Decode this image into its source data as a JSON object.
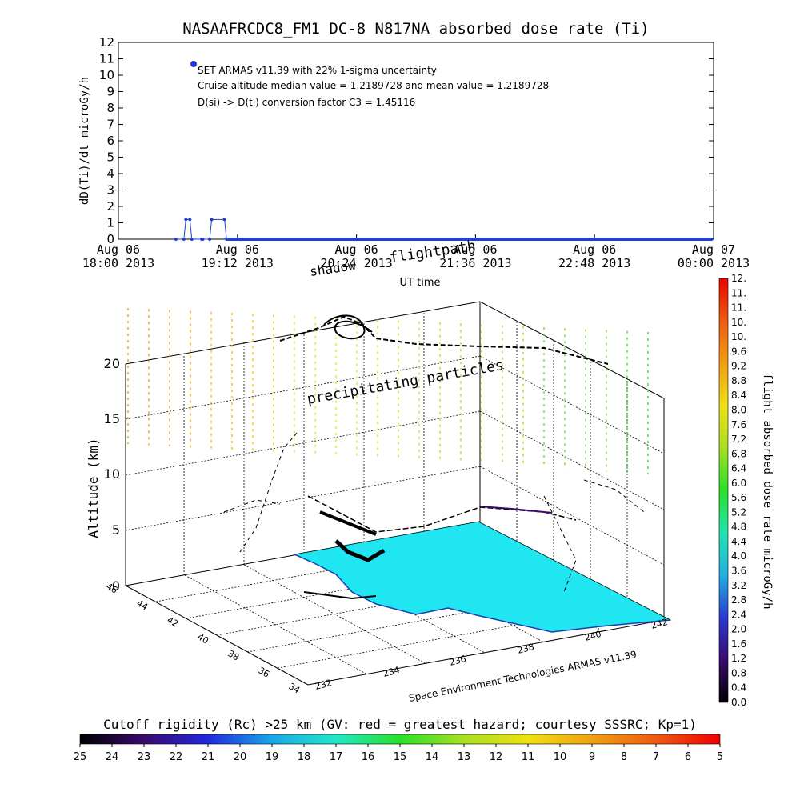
{
  "title": "NASAAFRCDC8_FM1 DC-8   N817NA absorbed dose rate (Ti)",
  "annotations": [
    "SET ARMAS v11.39 with 22% 1-sigma uncertainty",
    "Cruise altitude median value = 1.2189728 and mean value = 1.2189728",
    "D(si) -> D(ti) conversion factor C3 = 1.45116"
  ],
  "colors": {
    "series": "#1f3fd8",
    "land": "#1fe6f0",
    "dose_scale": [
      "#000000",
      "#3a0a6e",
      "#2a3ad6",
      "#1fb0e0",
      "#1fe6b0",
      "#28e028",
      "#a8e020",
      "#f0e010",
      "#f0a010",
      "#f05a10",
      "#f00000"
    ],
    "rigidity_scale": [
      "#000000",
      "#3a0a6e",
      "#2028e0",
      "#18a8e8",
      "#20e8c8",
      "#28e028",
      "#a8e020",
      "#f0e010",
      "#f0a010",
      "#f05a10",
      "#f00000"
    ]
  },
  "scene": {
    "label_flightpath": "flightpath",
    "label_shadow": "shadow",
    "label_precip": "precipitating particles",
    "altitude_label": "Altitude (km)",
    "credit": "Space Environment Technologies ARMAS v11.39",
    "alt_ticks": [
      "0",
      "5",
      "10",
      "15",
      "20"
    ],
    "lat_ticks": [
      "34",
      "36",
      "38",
      "40",
      "42",
      "44",
      "46"
    ],
    "lon_ticks": [
      "232",
      "234",
      "236",
      "238",
      "240",
      "242"
    ]
  },
  "dose_colorbar": {
    "label": "flight absorbed dose rate microGy/h",
    "ticks": [
      "0.0",
      "0.4",
      "0.8",
      "1.2",
      "1.6",
      "2.0",
      "2.4",
      "2.8",
      "3.2",
      "3.6",
      "4.0",
      "4.4",
      "4.8",
      "5.2",
      "5.6",
      "6.0",
      "6.4",
      "6.8",
      "7.2",
      "7.6",
      "8.0",
      "8.4",
      "8.8",
      "9.2",
      "9.6",
      "10.",
      "10.",
      "11.",
      "11.",
      "12."
    ]
  },
  "rigidity_colorbar": {
    "label": "Cutoff rigidity (Rc) >25 km (GV: red = greatest hazard; courtesy SSSRC; Kp=1)",
    "ticks": [
      "25",
      "24",
      "23",
      "22",
      "21",
      "20",
      "19",
      "18",
      "17",
      "16",
      "15",
      "14",
      "13",
      "12",
      "11",
      "10",
      "9",
      "8",
      "7",
      "6",
      "5"
    ]
  },
  "chart_data": {
    "type": "line",
    "title": "NASAAFRCDC8_FM1 DC-8   N817NA absorbed dose rate (Ti)",
    "xlabel": "UT time",
    "ylabel": "dD(Ti)/dt microGy/h",
    "ylim": [
      0,
      12
    ],
    "xlim_hours": [
      0,
      6
    ],
    "x_ticks": [
      "Aug 06\n18:00 2013",
      "Aug 06\n19:12 2013",
      "Aug 06\n20:24 2013",
      "Aug 06\n21:36 2013",
      "Aug 06\n22:48 2013",
      "Aug 07\n00:00 2013"
    ],
    "y_ticks": [
      "0",
      "1",
      "2",
      "3",
      "4",
      "5",
      "6",
      "7",
      "8",
      "9",
      "10",
      "11",
      "12"
    ],
    "series": [
      {
        "x": [
          0.58,
          0.66,
          0.68,
          0.72,
          0.74,
          0.84,
          0.85,
          0.92,
          0.94,
          1.07,
          1.09,
          1.14,
          1.2,
          1.5,
          2.0,
          2.5,
          3.0,
          3.5,
          4.0,
          4.5,
          5.0,
          5.5,
          5.98
        ],
        "y": [
          0,
          0,
          1.2,
          1.2,
          0,
          0,
          0,
          0,
          1.2,
          1.2,
          0,
          0,
          0,
          0,
          0,
          0,
          0,
          0,
          0,
          0,
          0,
          0,
          0
        ]
      }
    ],
    "legend_marker_value": 10.5
  }
}
